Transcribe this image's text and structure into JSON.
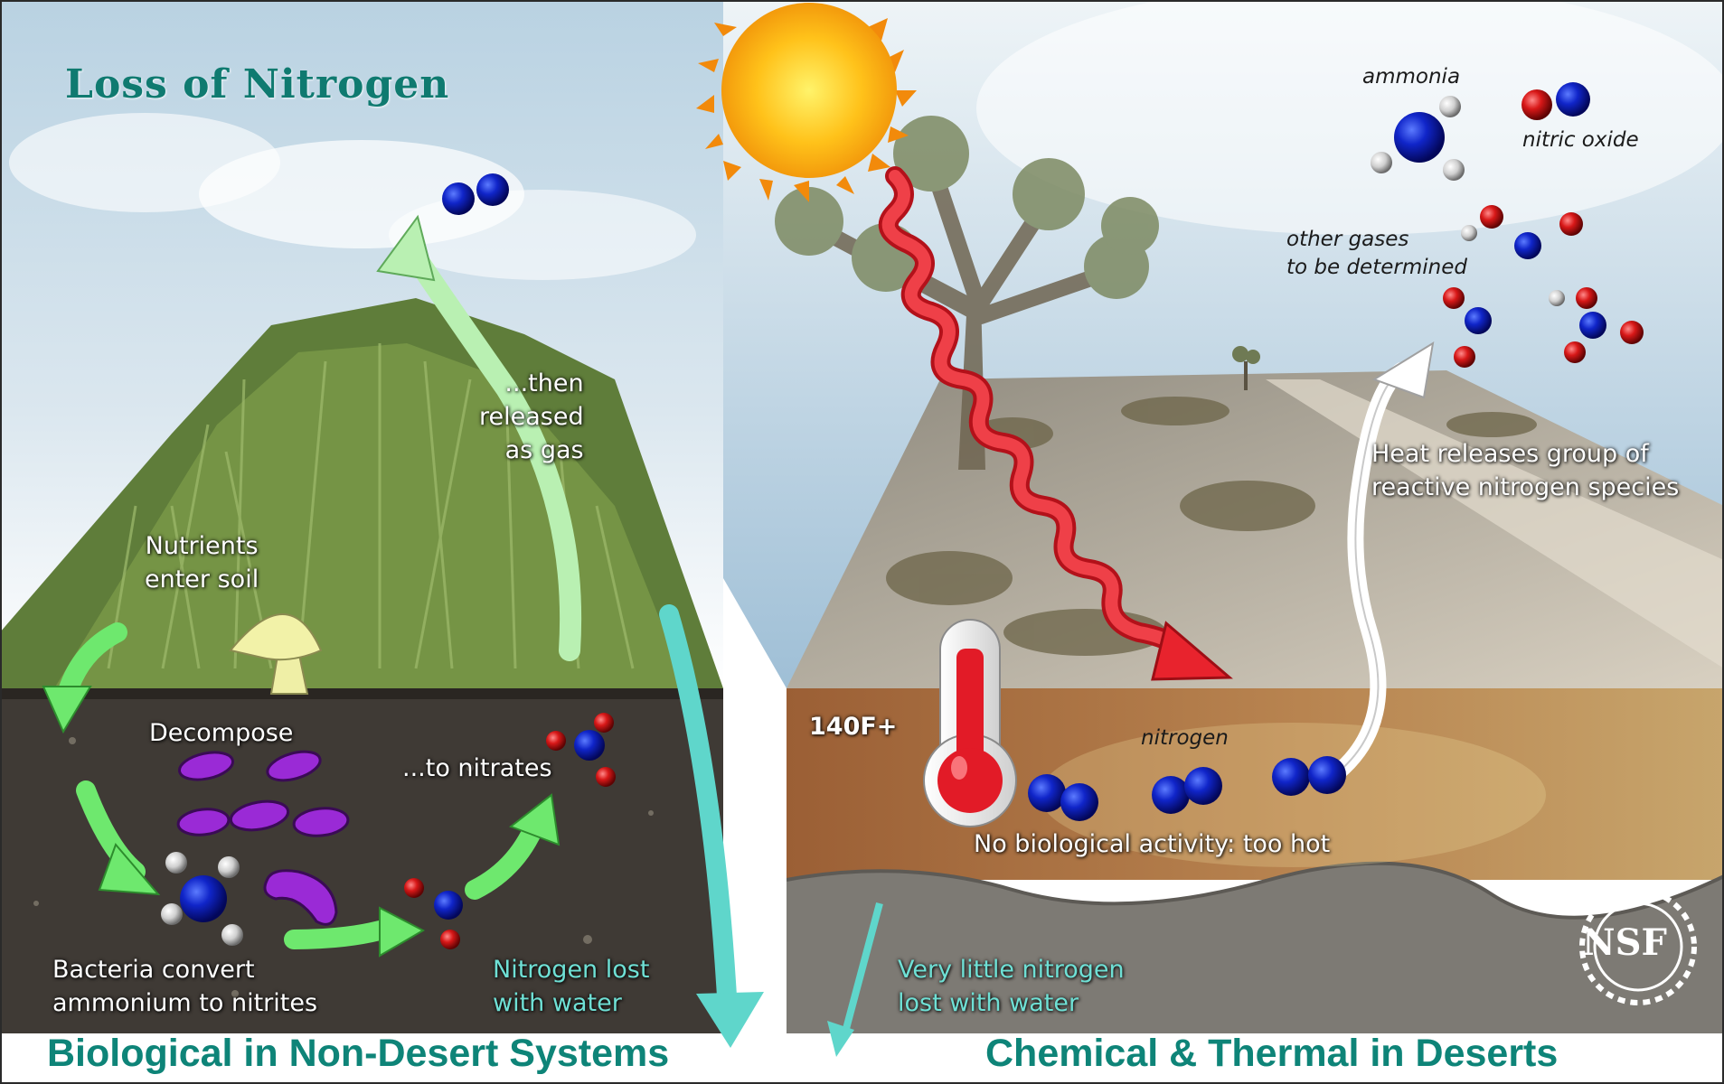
{
  "title": "Loss of Nitrogen",
  "left": {
    "caption": "Biological in Non-Desert Systems",
    "nutrients": [
      "Nutrients",
      "enter soil"
    ],
    "decompose": "Decompose",
    "bacteria": [
      "Bacteria convert",
      "ammonium to nitrites"
    ],
    "nitrates": "...to nitrates",
    "released": [
      "...then",
      "released",
      "as gas"
    ],
    "water": [
      "Nitrogen lost",
      "with water"
    ]
  },
  "right": {
    "caption": "Chemical & Thermal in Deserts",
    "temperature": "140F+",
    "nitrogen": "nitrogen",
    "no_bio": "No biological activity: too hot",
    "heat": [
      "Heat releases group of",
      "reactive nitrogen species"
    ],
    "water": [
      "Very little nitrogen",
      "lost with water"
    ],
    "ammonia": "ammonia",
    "nitric_oxide": "nitric oxide",
    "other_gases": [
      "other gases",
      "to be determined"
    ]
  },
  "logo": "NSF",
  "colors": {
    "title": "#0f7a70",
    "caption": "#0e8478",
    "green_arrow": "#6ee86e",
    "teal_arrow": "#5fd6cb",
    "heat_wave": "#e8232d",
    "nitrogen_atom": "#0b18b5",
    "oxygen_atom": "#d41a1a",
    "hydrogen_atom": "#d9d9d9"
  }
}
